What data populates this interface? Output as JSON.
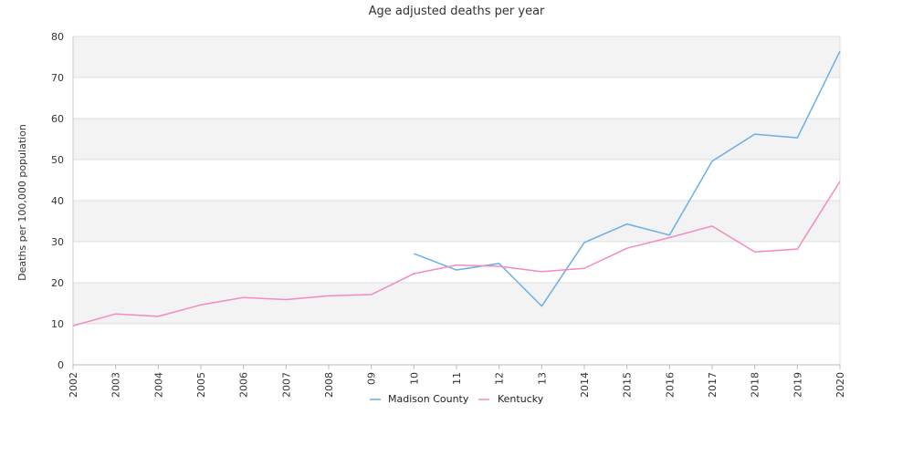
{
  "chart_data": {
    "type": "line",
    "title": "Age adjusted deaths per year",
    "xlabel": "",
    "ylabel": "Deaths per 100,000 population",
    "categories": [
      "2002",
      "2003",
      "2004",
      "2005",
      "2006",
      "2007",
      "2008",
      "09",
      "10",
      "11",
      "12",
      "13",
      "2014",
      "2015",
      "2016",
      "2017",
      "2018",
      "2019",
      "2020"
    ],
    "ylim": [
      0,
      80
    ],
    "yticks": [
      0,
      10,
      20,
      30,
      40,
      50,
      60,
      70,
      80
    ],
    "grid": true,
    "legend_position": "bottom",
    "series": [
      {
        "name": "Madison County",
        "color": "#6aaee8",
        "values": [
          null,
          null,
          null,
          null,
          null,
          null,
          null,
          null,
          27.1,
          23.1,
          24.7,
          14.3,
          29.8,
          34.3,
          31.6,
          49.6,
          56.2,
          55.3,
          76.4
        ]
      },
      {
        "name": "Kentucky",
        "color": "#f08cc0",
        "values": [
          9.5,
          12.4,
          11.8,
          14.6,
          16.4,
          15.9,
          16.8,
          17.1,
          22.2,
          24.3,
          24.0,
          22.7,
          23.5,
          28.4,
          31.0,
          33.8,
          27.5,
          28.2,
          44.7
        ]
      }
    ]
  }
}
